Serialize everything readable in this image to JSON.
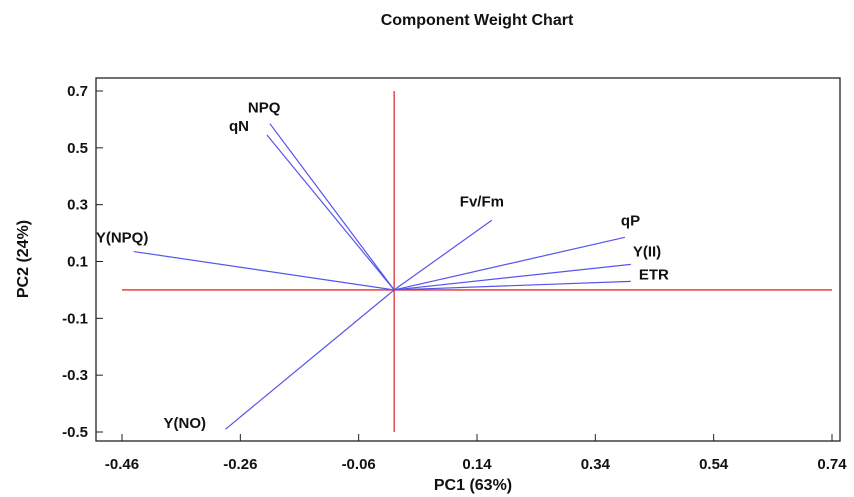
{
  "chart_data": {
    "type": "scatter",
    "subtype": "biplot-vectors",
    "title": "Component Weight Chart",
    "xlabel": "PC1 (63%)",
    "ylabel": "PC2 (24%)",
    "xlim": [
      -0.46,
      0.74
    ],
    "ylim": [
      -0.5,
      0.7
    ],
    "x_ticks": [
      "-0.46",
      "-0.26",
      "-0.06",
      "0.14",
      "0.34",
      "0.54",
      "0.74"
    ],
    "y_ticks": [
      "0.7",
      "0.5",
      "0.3",
      "0.1",
      "-0.1",
      "-0.3",
      "-0.5"
    ],
    "grid": false,
    "reference_lines": {
      "x": 0.0,
      "y": 0.0,
      "color": "#e03030"
    },
    "vector_color": "#5555ee",
    "series": [
      {
        "values": [
          {
            "label": "NPQ",
            "x": -0.21,
            "y": 0.585
          },
          {
            "label": "qN",
            "x": -0.215,
            "y": 0.545
          },
          {
            "label": "Fv/Fm",
            "x": 0.165,
            "y": 0.245
          },
          {
            "label": "qP",
            "x": 0.39,
            "y": 0.185
          },
          {
            "label": "Y(II)",
            "x": 0.4,
            "y": 0.09
          },
          {
            "label": "ETR",
            "x": 0.4,
            "y": 0.03
          },
          {
            "label": "Y(NPQ)",
            "x": -0.44,
            "y": 0.135
          },
          {
            "label": "Y(NO)",
            "x": -0.285,
            "y": -0.49
          }
        ]
      }
    ]
  }
}
